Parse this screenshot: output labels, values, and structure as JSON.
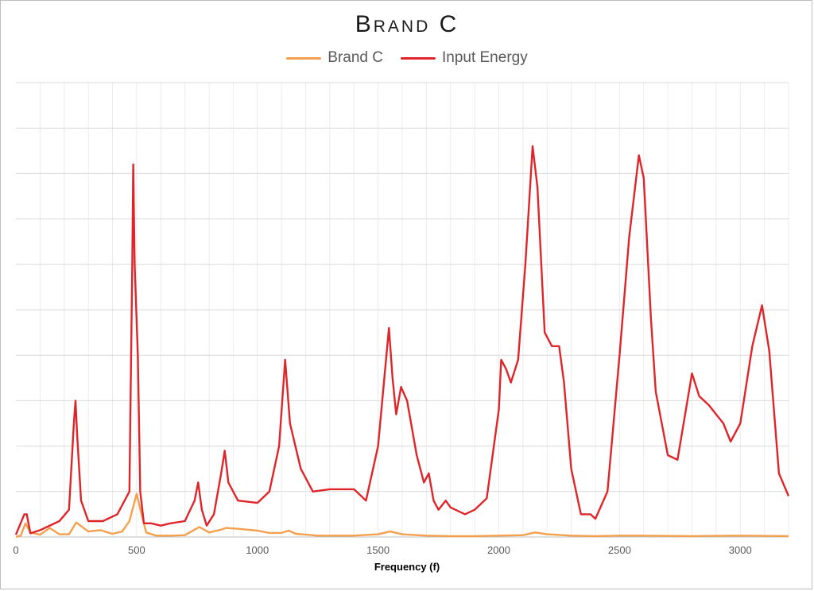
{
  "chart_data": {
    "type": "line",
    "title": "Brand C",
    "xlabel": "Frequency (f)",
    "ylabel": "",
    "xlim": [
      0,
      3200
    ],
    "ylim": [
      0,
      100
    ],
    "x_ticks": [
      0,
      500,
      1000,
      1500,
      2000,
      2500,
      3000
    ],
    "y_tick_labels_shown": false,
    "grid": true,
    "legend_position": "top",
    "series": [
      {
        "name": "Brand C",
        "color": "#f4a04c",
        "points": [
          [
            0,
            0
          ],
          [
            20,
            0.3
          ],
          [
            40,
            3
          ],
          [
            60,
            1
          ],
          [
            100,
            0.5
          ],
          [
            140,
            2
          ],
          [
            180,
            0.6
          ],
          [
            220,
            0.6
          ],
          [
            250,
            3.2
          ],
          [
            300,
            1.2
          ],
          [
            350,
            1.5
          ],
          [
            400,
            0.7
          ],
          [
            440,
            1.2
          ],
          [
            470,
            3.5
          ],
          [
            500,
            9.5
          ],
          [
            520,
            5
          ],
          [
            540,
            1
          ],
          [
            580,
            0.3
          ],
          [
            650,
            0.3
          ],
          [
            700,
            0.4
          ],
          [
            760,
            2.2
          ],
          [
            800,
            1
          ],
          [
            850,
            1.6
          ],
          [
            870,
            2
          ],
          [
            920,
            1.8
          ],
          [
            1000,
            1.4
          ],
          [
            1050,
            0.9
          ],
          [
            1100,
            0.9
          ],
          [
            1130,
            1.4
          ],
          [
            1160,
            0.7
          ],
          [
            1250,
            0.3
          ],
          [
            1400,
            0.3
          ],
          [
            1500,
            0.6
          ],
          [
            1550,
            1.2
          ],
          [
            1600,
            0.6
          ],
          [
            1700,
            0.3
          ],
          [
            1800,
            0.2
          ],
          [
            1900,
            0.2
          ],
          [
            2000,
            0.3
          ],
          [
            2100,
            0.4
          ],
          [
            2150,
            1
          ],
          [
            2200,
            0.6
          ],
          [
            2300,
            0.3
          ],
          [
            2400,
            0.2
          ],
          [
            2500,
            0.3
          ],
          [
            2600,
            0.3
          ],
          [
            2800,
            0.2
          ],
          [
            3000,
            0.3
          ],
          [
            3200,
            0.2
          ]
        ]
      },
      {
        "name": "Input Energy",
        "color": "#e0252a",
        "points": [
          [
            0,
            0.5
          ],
          [
            35,
            5
          ],
          [
            45,
            5
          ],
          [
            60,
            0.8
          ],
          [
            100,
            1.5
          ],
          [
            180,
            3.5
          ],
          [
            220,
            6
          ],
          [
            240,
            25
          ],
          [
            247,
            30
          ],
          [
            254,
            22
          ],
          [
            270,
            8
          ],
          [
            300,
            3.5
          ],
          [
            360,
            3.5
          ],
          [
            420,
            5
          ],
          [
            470,
            10
          ],
          [
            482,
            60
          ],
          [
            486,
            82
          ],
          [
            492,
            60
          ],
          [
            505,
            40
          ],
          [
            515,
            10
          ],
          [
            530,
            3
          ],
          [
            560,
            3
          ],
          [
            600,
            2.5
          ],
          [
            640,
            3
          ],
          [
            700,
            3.5
          ],
          [
            740,
            8
          ],
          [
            755,
            12
          ],
          [
            770,
            6
          ],
          [
            790,
            2.5
          ],
          [
            820,
            5
          ],
          [
            850,
            14
          ],
          [
            865,
            19
          ],
          [
            880,
            12
          ],
          [
            920,
            8
          ],
          [
            1000,
            7.5
          ],
          [
            1050,
            10
          ],
          [
            1090,
            20
          ],
          [
            1115,
            39
          ],
          [
            1135,
            25
          ],
          [
            1180,
            15
          ],
          [
            1230,
            10
          ],
          [
            1300,
            10.5
          ],
          [
            1400,
            10.5
          ],
          [
            1430,
            9
          ],
          [
            1450,
            8
          ],
          [
            1500,
            20
          ],
          [
            1545,
            46
          ],
          [
            1560,
            35
          ],
          [
            1575,
            27
          ],
          [
            1595,
            33
          ],
          [
            1620,
            30
          ],
          [
            1660,
            18
          ],
          [
            1690,
            12
          ],
          [
            1710,
            14
          ],
          [
            1730,
            8
          ],
          [
            1750,
            6
          ],
          [
            1780,
            8
          ],
          [
            1800,
            6.5
          ],
          [
            1860,
            5
          ],
          [
            1900,
            6
          ],
          [
            1950,
            8.5
          ],
          [
            2000,
            28
          ],
          [
            2010,
            39
          ],
          [
            2030,
            37
          ],
          [
            2050,
            34
          ],
          [
            2080,
            39
          ],
          [
            2110,
            60
          ],
          [
            2140,
            86
          ],
          [
            2160,
            77
          ],
          [
            2190,
            45
          ],
          [
            2220,
            42
          ],
          [
            2250,
            42
          ],
          [
            2270,
            34
          ],
          [
            2300,
            15
          ],
          [
            2340,
            5
          ],
          [
            2380,
            5
          ],
          [
            2400,
            4
          ],
          [
            2450,
            10
          ],
          [
            2500,
            40
          ],
          [
            2540,
            66
          ],
          [
            2580,
            84
          ],
          [
            2600,
            79
          ],
          [
            2630,
            48
          ],
          [
            2650,
            32
          ],
          [
            2700,
            18
          ],
          [
            2740,
            17
          ],
          [
            2800,
            36
          ],
          [
            2830,
            31
          ],
          [
            2870,
            29
          ],
          [
            2930,
            25
          ],
          [
            2960,
            21
          ],
          [
            3000,
            25
          ],
          [
            3050,
            42
          ],
          [
            3090,
            51
          ],
          [
            3120,
            41
          ],
          [
            3160,
            14
          ],
          [
            3200,
            9
          ]
        ]
      }
    ]
  }
}
